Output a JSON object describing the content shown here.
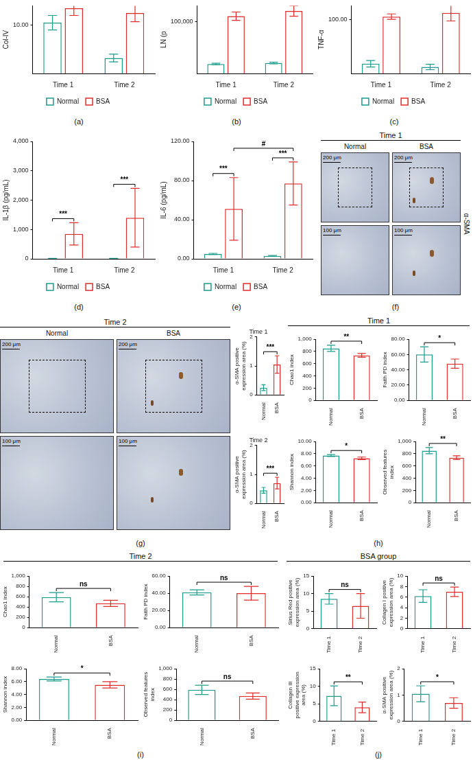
{
  "panels": [
    {
      "label": "(a)"
    },
    {
      "label": "(b)"
    },
    {
      "label": "(c)"
    },
    {
      "label": "(d)"
    },
    {
      "label": "(e)"
    },
    {
      "label": "(f)"
    },
    {
      "label": "(g)"
    },
    {
      "label": "(h)",
      "heading": "Time 1"
    },
    {
      "label": "(i)",
      "heading": "Time 2"
    },
    {
      "label": "(j)",
      "heading": "BSA group"
    }
  ],
  "chart_data": [
    {
      "type": "bar",
      "panel": "(a)",
      "y_label": "Col-IV",
      "categories": [
        "Time 1",
        "Time 2"
      ],
      "series": [
        {
          "name": "Normal",
          "color": "#1a9c8c",
          "values": [
            10.5,
            3.2
          ],
          "errors": [
            1.5,
            0.8
          ]
        },
        {
          "name": "BSA",
          "color": "#e02b2b",
          "values": [
            13.5,
            12.5
          ],
          "errors": [
            1.5,
            1.8
          ]
        }
      ],
      "ylim": [
        0,
        14
      ],
      "yticks": [
        {
          "value": 10,
          "label": "10.00"
        }
      ],
      "grid": false,
      "legend": "bottom"
    },
    {
      "type": "bar",
      "panel": "(b)",
      "y_label": "LN (p",
      "categories": [
        "Time 1",
        "Time 2"
      ],
      "series": [
        {
          "name": "Normal",
          "color": "#1a9c8c",
          "values": [
            18000,
            20000
          ],
          "errors": [
            1500,
            1500
          ]
        },
        {
          "name": "BSA",
          "color": "#e02b2b",
          "values": [
            110000,
            120000
          ],
          "errors": [
            8000,
            10000
          ]
        }
      ],
      "ylim": [
        0,
        130000
      ],
      "yticks": [
        {
          "value": 100000,
          "label": "100,000"
        }
      ],
      "grid": false,
      "legend": "bottom"
    },
    {
      "type": "bar",
      "panel": "(c)",
      "y_label": "TNF-α",
      "categories": [
        "Time 1",
        "Time 2"
      ],
      "series": [
        {
          "name": "Normal",
          "color": "#1a9c8c",
          "values": [
            18,
            12
          ],
          "errors": [
            6,
            5
          ]
        },
        {
          "name": "BSA",
          "color": "#e02b2b",
          "values": [
            105,
            112
          ],
          "errors": [
            5,
            15
          ]
        }
      ],
      "ylim": [
        0,
        125
      ],
      "yticks": [
        {
          "value": 100,
          "label": "100.00"
        }
      ],
      "grid": false,
      "legend": "bottom"
    },
    {
      "type": "bar",
      "panel": "(d)",
      "y_label": "IL-1β (pg/mL)",
      "categories": [
        "Time 1",
        "Time 2"
      ],
      "series": [
        {
          "name": "Normal",
          "color": "#1a9c8c",
          "values": [
            10,
            10
          ],
          "errors": [
            5,
            5
          ]
        },
        {
          "name": "BSA",
          "color": "#e02b2b",
          "values": [
            850,
            1400
          ],
          "errors": [
            380,
            1000
          ]
        }
      ],
      "ylim": [
        0,
        4000
      ],
      "yticks": [
        0,
        {
          "value": 1000,
          "label": "1,000"
        },
        {
          "value": 2000,
          "label": "2,000"
        },
        {
          "value": 3000,
          "label": "3,000"
        },
        {
          "value": 4000,
          "label": "4,000"
        }
      ],
      "grid": false,
      "legend": "bottom",
      "annotations": [
        {
          "text": "***",
          "between": [
            [
              "Normal",
              "Time 1"
            ],
            [
              "BSA",
              "Time 1"
            ]
          ]
        },
        {
          "text": "***",
          "between": [
            [
              "Normal",
              "Time 2"
            ],
            [
              "BSA",
              "Time 2"
            ]
          ]
        }
      ]
    },
    {
      "type": "bar",
      "panel": "(e)",
      "y_label": "IL-6 (pg/mL)",
      "categories": [
        "Time 1",
        "Time 2"
      ],
      "series": [
        {
          "name": "Normal",
          "color": "#1a9c8c",
          "values": [
            5,
            3
          ],
          "errors": [
            0.6,
            0.5
          ]
        },
        {
          "name": "BSA",
          "color": "#e02b2b",
          "values": [
            51,
            77
          ],
          "errors": [
            32,
            22
          ]
        }
      ],
      "ylim": [
        0,
        120
      ],
      "yticks": [
        {
          "value": 0,
          "label": "0.00"
        },
        {
          "value": 40,
          "label": "40.00"
        },
        {
          "value": 80,
          "label": "80.00"
        },
        {
          "value": 120,
          "label": "120.00"
        }
      ],
      "grid": false,
      "legend": "bottom",
      "annotations": [
        {
          "text": "***",
          "between": [
            [
              "Normal",
              "Time 1"
            ],
            [
              "BSA",
              "Time 1"
            ]
          ]
        },
        {
          "text": "***",
          "between": [
            [
              "Normal",
              "Time 2"
            ],
            [
              "BSA",
              "Time 2"
            ]
          ]
        },
        {
          "text": "#",
          "between": [
            [
              "BSA",
              "Time 1"
            ],
            [
              "BSA",
              "Time 2"
            ]
          ]
        }
      ]
    },
    {
      "type": "image",
      "panel": "(f)",
      "title": "Time 1",
      "columns": [
        "Normal",
        "BSA"
      ],
      "scale_bars": [
        "200 μm",
        "100 μm"
      ],
      "row_label": "α-SMA"
    },
    {
      "type": "image",
      "panel": "(g)",
      "title": "Time 2",
      "columns": [
        "Normal",
        "BSA"
      ],
      "scale_bars": [
        "200 μm",
        "100 μm"
      ]
    },
    {
      "type": "bar",
      "panel": "(g)",
      "title": "Time 1",
      "y_label": "α-SMA positive expression area (%)",
      "categories": [
        "Normal",
        "BSA"
      ],
      "values": [
        0.25,
        1.05
      ],
      "errors": [
        0.1,
        0.3
      ],
      "colors": [
        "#1a9c8c",
        "#e02b2b"
      ],
      "ylim": [
        0,
        2
      ],
      "yticks": [
        0,
        1,
        2
      ],
      "grid": false,
      "annotations": [
        {
          "text": "***",
          "between": [
            "Normal",
            "BSA"
          ]
        }
      ]
    },
    {
      "type": "bar",
      "panel": "(g)",
      "title": "Time 2",
      "y_label": "α-SMA positive expression area (%)",
      "categories": [
        "Normal",
        "BSA"
      ],
      "values": [
        0.45,
        0.7
      ],
      "errors": [
        0.1,
        0.2
      ],
      "colors": [
        "#1a9c8c",
        "#e02b2b"
      ],
      "ylim": [
        0,
        2
      ],
      "yticks": [
        0,
        1,
        2
      ],
      "grid": false,
      "annotations": [
        {
          "text": "***",
          "between": [
            "Normal",
            "BSA"
          ]
        }
      ]
    },
    {
      "type": "bar",
      "panel": "(h)",
      "y_label": "Chao1 index",
      "categories": [
        "Normal",
        "BSA"
      ],
      "values": [
        850,
        735
      ],
      "errors": [
        50,
        30
      ],
      "colors": [
        "#1a9c8c",
        "#e02b2b"
      ],
      "ylim": [
        0,
        1000
      ],
      "yticks": [
        0,
        200,
        400,
        600,
        800,
        {
          "value": 1000,
          "label": "1,000"
        }
      ],
      "grid": false,
      "annotations": [
        {
          "text": "**",
          "between": [
            "Normal",
            "BSA"
          ]
        }
      ]
    },
    {
      "type": "bar",
      "panel": "(h)",
      "y_label": "Faith PD index",
      "categories": [
        "Normal",
        "BSA"
      ],
      "values": [
        60,
        48
      ],
      "errors": [
        10,
        6
      ],
      "colors": [
        "#1a9c8c",
        "#e02b2b"
      ],
      "ylim": [
        0,
        80
      ],
      "yticks": [
        {
          "value": 0,
          "label": "0.00"
        },
        {
          "value": 20,
          "label": "20.00"
        },
        {
          "value": 40,
          "label": "40.00"
        },
        {
          "value": 60,
          "label": "60.00"
        },
        {
          "value": 80,
          "label": "80.00"
        }
      ],
      "grid": false,
      "annotations": [
        {
          "text": "*",
          "between": [
            "Normal",
            "BSA"
          ]
        }
      ]
    },
    {
      "type": "bar",
      "panel": "(h)",
      "y_label": "Shannon index",
      "categories": [
        "Normal",
        "BSA"
      ],
      "values": [
        7.7,
        7.25
      ],
      "errors": [
        0.15,
        0.2
      ],
      "colors": [
        "#1a9c8c",
        "#e02b2b"
      ],
      "ylim": [
        0,
        10
      ],
      "yticks": [
        {
          "value": 0,
          "label": "0.00"
        },
        {
          "value": 2,
          "label": "2.00"
        },
        {
          "value": 4,
          "label": "4.00"
        },
        {
          "value": 6,
          "label": "6.00"
        },
        {
          "value": 8,
          "label": "8.00"
        },
        {
          "value": 10,
          "label": "10.00"
        }
      ],
      "grid": false,
      "annotations": [
        {
          "text": "*",
          "between": [
            "Normal",
            "BSA"
          ]
        }
      ]
    },
    {
      "type": "bar",
      "panel": "(h)",
      "y_label": "Observed features index",
      "categories": [
        "Normal",
        "BSA"
      ],
      "values": [
        850,
        735
      ],
      "errors": [
        50,
        30
      ],
      "colors": [
        "#1a9c8c",
        "#e02b2b"
      ],
      "ylim": [
        0,
        1000
      ],
      "yticks": [
        0,
        200,
        400,
        600,
        800,
        {
          "value": 1000,
          "label": "1,000"
        }
      ],
      "grid": false,
      "annotations": [
        {
          "text": "**",
          "between": [
            "Normal",
            "BSA"
          ]
        }
      ]
    },
    {
      "type": "bar",
      "panel": "(i)",
      "y_label": "Chao1 index",
      "categories": [
        "Normal",
        "BSA"
      ],
      "values": [
        590,
        470
      ],
      "errors": [
        90,
        60
      ],
      "colors": [
        "#1a9c8c",
        "#e02b2b"
      ],
      "ylim": [
        0,
        1000
      ],
      "yticks": [
        0,
        200,
        400,
        600,
        800,
        {
          "value": 1000,
          "label": "1,000"
        }
      ],
      "grid": false,
      "annotations": [
        {
          "text": "ns",
          "between": [
            "Normal",
            "BSA"
          ]
        }
      ]
    },
    {
      "type": "bar",
      "panel": "(i)",
      "y_label": "Faith PD index",
      "categories": [
        "Normal",
        "BSA"
      ],
      "values": [
        41,
        40
      ],
      "errors": [
        3,
        8
      ],
      "colors": [
        "#1a9c8c",
        "#e02b2b"
      ],
      "ylim": [
        0,
        60
      ],
      "yticks": [
        {
          "value": 0,
          "label": "0.00"
        },
        {
          "value": 20,
          "label": "20.00"
        },
        {
          "value": 40,
          "label": "40.00"
        },
        {
          "value": 60,
          "label": "60.00"
        }
      ],
      "grid": false,
      "annotations": [
        {
          "text": "ns",
          "between": [
            "Normal",
            "BSA"
          ]
        }
      ]
    },
    {
      "type": "bar",
      "panel": "(i)",
      "y_label": "Shannon index",
      "categories": [
        "Normal",
        "BSA"
      ],
      "values": [
        6.4,
        5.5
      ],
      "errors": [
        0.3,
        0.5
      ],
      "colors": [
        "#1a9c8c",
        "#e02b2b"
      ],
      "ylim": [
        0,
        8
      ],
      "yticks": [
        {
          "value": 0,
          "label": "0.00"
        },
        {
          "value": 2,
          "label": "2.00"
        },
        {
          "value": 4,
          "label": "4.00"
        },
        {
          "value": 6,
          "label": "6.00"
        },
        {
          "value": 8,
          "label": "8.00"
        }
      ],
      "grid": false,
      "annotations": [
        {
          "text": "*",
          "between": [
            "Normal",
            "BSA"
          ]
        }
      ]
    },
    {
      "type": "bar",
      "panel": "(i)",
      "y_label": "Observed features index",
      "categories": [
        "Normal",
        "BSA"
      ],
      "values": [
        590,
        470
      ],
      "errors": [
        90,
        60
      ],
      "colors": [
        "#1a9c8c",
        "#e02b2b"
      ],
      "ylim": [
        0,
        1000
      ],
      "yticks": [
        0,
        200,
        400,
        600,
        800,
        {
          "value": 1000,
          "label": "1,000"
        }
      ],
      "grid": false,
      "annotations": [
        {
          "text": "ns",
          "between": [
            "Normal",
            "BSA"
          ]
        }
      ]
    },
    {
      "type": "bar",
      "panel": "(j)",
      "y_label": "Sirius Red positive expression area (%)",
      "categories": [
        "Time 1",
        "Time 2"
      ],
      "values": [
        8.5,
        6.5
      ],
      "errors": [
        1.5,
        3.5
      ],
      "colors": [
        "#1a9c8c",
        "#e02b2b"
      ],
      "ylim": [
        0,
        15
      ],
      "yticks": [
        0,
        5,
        10,
        15
      ],
      "grid": false,
      "annotations": [
        {
          "text": "ns",
          "between": [
            "Time 1",
            "Time 2"
          ]
        }
      ]
    },
    {
      "type": "bar",
      "panel": "(j)",
      "y_label": "Collagen I positive expression area (%)",
      "categories": [
        "Time 1",
        "Time 2"
      ],
      "values": [
        6.2,
        7.0
      ],
      "errors": [
        1.2,
        0.9
      ],
      "colors": [
        "#1a9c8c",
        "#e02b2b"
      ],
      "ylim": [
        0,
        10
      ],
      "yticks": [
        0,
        2,
        4,
        6,
        8,
        10
      ],
      "grid": false,
      "annotations": [
        {
          "text": "ns",
          "between": [
            "Time 1",
            "Time 2"
          ]
        }
      ]
    },
    {
      "type": "bar",
      "panel": "(j)",
      "y_label": "Collagen III positive expression area (%)",
      "categories": [
        "Time 1",
        "Time 2"
      ],
      "values": [
        7.3,
        4.0
      ],
      "errors": [
        2.8,
        1.5
      ],
      "colors": [
        "#1a9c8c",
        "#e02b2b"
      ],
      "ylim": [
        0,
        15
      ],
      "yticks": [
        0,
        5,
        10,
        15
      ],
      "grid": false,
      "annotations": [
        {
          "text": "**",
          "between": [
            "Time 1",
            "Time 2"
          ]
        }
      ]
    },
    {
      "type": "bar",
      "panel": "(j)",
      "y_label": "α-SMA positive expression area (%)",
      "categories": [
        "Time 1",
        "Time 2"
      ],
      "values": [
        1.05,
        0.7
      ],
      "errors": [
        0.3,
        0.2
      ],
      "colors": [
        "#1a9c8c",
        "#e02b2b"
      ],
      "ylim": [
        0,
        2
      ],
      "yticks": [
        0,
        1,
        2
      ],
      "grid": false,
      "annotations": [
        {
          "text": "*",
          "between": [
            "Time 1",
            "Time 2"
          ]
        }
      ]
    }
  ]
}
